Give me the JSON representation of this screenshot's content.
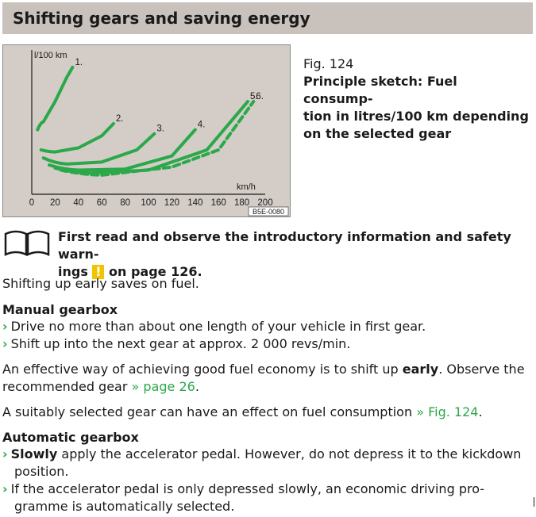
{
  "header": {
    "title": "Shifting gears and saving energy"
  },
  "figure": {
    "ref": "Fig. 124",
    "caption": "Principle sketch: Fuel consump-tion in litres/100 km depending on the selected gear",
    "caption_line1": "Principle sketch: Fuel consump-",
    "caption_line2": "tion in litres/100 km depending",
    "caption_line3": "on the selected gear",
    "code": "B5E-0080"
  },
  "chart_data": {
    "type": "line",
    "title": "",
    "xlabel": "km/h",
    "ylabel": "l/100 km",
    "xlim": [
      0,
      200
    ],
    "x_ticks": [
      "0",
      "20",
      "40",
      "60",
      "80",
      "100",
      "120",
      "140",
      "160",
      "180",
      "200"
    ],
    "y_ticks": [],
    "grid": false,
    "series": [
      {
        "name": "1.",
        "x": [
          5,
          10,
          20,
          30,
          35
        ],
        "y": [
          3.2,
          3.6,
          4.6,
          5.8,
          6.3
        ]
      },
      {
        "name": "2.",
        "x": [
          8,
          20,
          40,
          60,
          70
        ],
        "y": [
          2.2,
          2.1,
          2.3,
          2.9,
          3.5
        ]
      },
      {
        "name": "3.",
        "x": [
          10,
          30,
          60,
          90,
          105
        ],
        "y": [
          1.8,
          1.5,
          1.6,
          2.2,
          3.0
        ]
      },
      {
        "name": "4.",
        "x": [
          15,
          40,
          80,
          120,
          140
        ],
        "y": [
          1.45,
          1.2,
          1.25,
          1.9,
          3.2
        ]
      },
      {
        "name": "5.",
        "x": [
          20,
          50,
          100,
          150,
          185
        ],
        "y": [
          1.3,
          1.05,
          1.2,
          2.2,
          4.6
        ]
      },
      {
        "name": "6.",
        "x": [
          25,
          60,
          120,
          160,
          190
        ],
        "y": [
          1.2,
          0.95,
          1.35,
          2.2,
          4.6
        ]
      }
    ],
    "series_colors": [
      "#2aa84a"
    ],
    "dashed_series": [
      "6."
    ]
  },
  "warning": {
    "text_before": "First read and observe the introductory information and safety warn-ings",
    "line1": "First read and observe the introductory information and safety warn-",
    "line2_start": "ings",
    "sign": "!",
    "text_after": "on page 126."
  },
  "body": {
    "intro": "Shifting up early saves on fuel.",
    "manual": {
      "heading": "Manual gearbox",
      "items": [
        "Drive no more than about one length of your vehicle in first gear.",
        "Shift up into the next gear at approx. 2 000 revs/min."
      ]
    },
    "economy_para": {
      "text_a": "An effective way of achieving good fuel economy is to shift up",
      "bold": "early",
      "text_b": ". Observe the",
      "line2": "recommended gear",
      "link": "» page 26",
      "end": "."
    },
    "selected_para": {
      "text": "A suitably selected gear can have an effect on fuel consumption",
      "link": "» Fig. 124",
      "end": "."
    },
    "automatic": {
      "heading": "Automatic gearbox",
      "item1_bold": "Slowly",
      "item1_rest": "apply the accelerator pedal. However, do not depress it to the kickdown",
      "item1_line2": "position.",
      "item2_line1": "If the accelerator pedal is only depressed slowly, an economic driving pro-",
      "item2_line2": "gramme is automatically selected."
    }
  },
  "bullet_glyph": "›"
}
